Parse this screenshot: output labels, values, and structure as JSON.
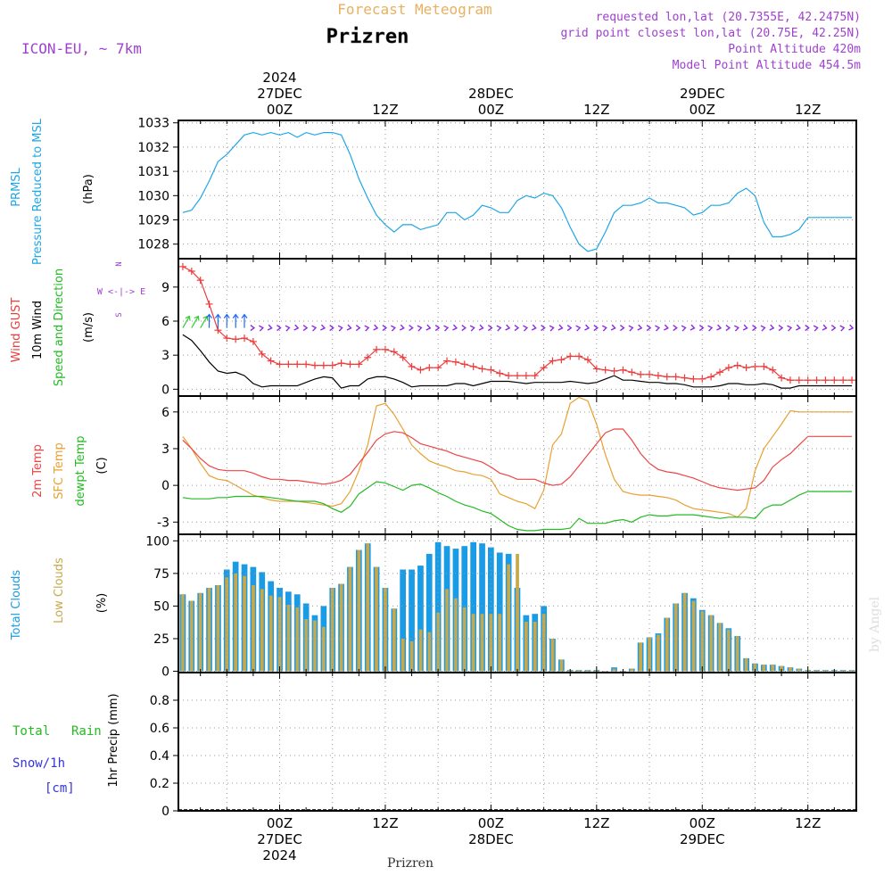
{
  "header": {
    "product_title": "Forecast Meteogram",
    "location": "Prizren",
    "model": "ICON-EU, ~ 7km",
    "requested_point": "requested lon,lat (20.7355E, 42.2475N)",
    "grid_point": "grid point closest lon,lat (20.75E, 42.25N)",
    "point_altitude": "Point Altitude 420m",
    "model_altitude": "Model Point Altitude 454.5m",
    "footer_location": "Prizren",
    "credit": "by Angel"
  },
  "time_axis": {
    "year": "2024",
    "top_labels": [
      {
        "x": 24,
        "hour": "00Z",
        "date": "27DEC",
        "year": "2024"
      },
      {
        "x": 36,
        "hour": "12Z",
        "date": "",
        "year": ""
      },
      {
        "x": 48,
        "hour": "00Z",
        "date": "28DEC",
        "year": ""
      },
      {
        "x": 60,
        "hour": "12Z",
        "date": "",
        "year": ""
      },
      {
        "x": 72,
        "hour": "00Z",
        "date": "29DEC",
        "year": ""
      },
      {
        "x": 84,
        "hour": "12Z",
        "date": "",
        "year": ""
      }
    ],
    "bottom_labels": [
      {
        "x": 24,
        "hour": "00Z",
        "date": "27DEC",
        "year": "2024"
      },
      {
        "x": 36,
        "hour": "12Z",
        "date": "",
        "year": ""
      },
      {
        "x": 48,
        "hour": "00Z",
        "date": "28DEC",
        "year": ""
      },
      {
        "x": 60,
        "hour": "12Z",
        "date": "",
        "year": ""
      },
      {
        "x": 72,
        "hour": "00Z",
        "date": "29DEC",
        "year": ""
      },
      {
        "x": 84,
        "hour": "12Z",
        "date": "",
        "year": ""
      }
    ],
    "xlim": [
      12.5,
      89.5
    ]
  },
  "colors": {
    "pressure": "#1ea6e6",
    "gust": "#ee3b3b",
    "wind": "#000000",
    "barbs_green": "#33cc33",
    "barbs_blue": "#1a66ff",
    "barbs_purple": "#8a2be2",
    "temp2m": "#ee4444",
    "sfc": "#e8a030",
    "dewpt": "#22bb22",
    "total_clouds": "#1a9be6",
    "low_clouds": "#c8a84a",
    "rain": "#22bb22",
    "snow": "#3333dd",
    "purple_text": "#a040d0",
    "orange_text": "#e8b060"
  },
  "panels": {
    "pressure": {
      "label1": "PRMSL",
      "label2": "Pressure Reduced to MSL",
      "unit": "(hPa)",
      "ticks": [
        "1028",
        "1029",
        "1030",
        "1031",
        "1032",
        "1033"
      ]
    },
    "wind": {
      "label_gust": "Wind GUST",
      "label_wind": "10m Wind",
      "label_dir": "Speed and Direction",
      "unit": "(m/s)",
      "compass_n": "N",
      "compass_s": "S",
      "compass_mid": "W <-|-> E",
      "ticks": [
        "0",
        "3",
        "6",
        "9"
      ]
    },
    "temp": {
      "label1": "2m Temp",
      "label2": "SFC Temp",
      "label3": "dewpt Temp",
      "unit": "(C)",
      "ticks": [
        "-3",
        "0",
        "3",
        "6"
      ]
    },
    "clouds": {
      "label1": "Total Clouds",
      "label2": "Low Clouds",
      "unit": "(%)",
      "ticks": [
        "0",
        "25",
        "50",
        "75",
        "100"
      ]
    },
    "precip": {
      "label_rain1": "Total",
      "label_rain2": "Rain",
      "label_snow": "Snow/1h",
      "label_snow_unit": "[cm]",
      "ylabel": "1hr Precip (mm)",
      "ticks": [
        "0",
        "0.2",
        "0.4",
        "0.6",
        "0.8"
      ]
    }
  },
  "chart_data": [
    {
      "type": "line",
      "name": "pressure",
      "ylim": [
        1027.4,
        1033.1
      ],
      "x": [
        13,
        14,
        15,
        16,
        17,
        18,
        19,
        20,
        21,
        22,
        23,
        24,
        25,
        26,
        27,
        28,
        29,
        30,
        31,
        32,
        33,
        34,
        35,
        36,
        37,
        38,
        39,
        40,
        41,
        42,
        43,
        44,
        45,
        46,
        47,
        48,
        49,
        50,
        51,
        52,
        53,
        54,
        55,
        56,
        57,
        58,
        59,
        60,
        61,
        62,
        63,
        64,
        65,
        66,
        67,
        68,
        69,
        70,
        71,
        72,
        73,
        74,
        75,
        76,
        77,
        78,
        79,
        80,
        81,
        82,
        83,
        84,
        85,
        86,
        87,
        88,
        89
      ],
      "values": [
        1029.3,
        1029.4,
        1029.9,
        1030.6,
        1031.4,
        1031.7,
        1032.1,
        1032.5,
        1032.6,
        1032.5,
        1032.6,
        1032.5,
        1032.6,
        1032.4,
        1032.6,
        1032.5,
        1032.6,
        1032.6,
        1032.5,
        1031.7,
        1030.7,
        1029.9,
        1029.2,
        1028.8,
        1028.5,
        1028.8,
        1028.8,
        1028.6,
        1028.7,
        1028.8,
        1029.3,
        1029.3,
        1029.0,
        1029.2,
        1029.6,
        1029.5,
        1029.3,
        1029.3,
        1029.8,
        1030.0,
        1029.9,
        1030.1,
        1030.0,
        1029.5,
        1028.7,
        1028.0,
        1027.7,
        1027.8,
        1028.5,
        1029.3,
        1029.6,
        1029.6,
        1029.7,
        1029.9,
        1029.7,
        1029.7,
        1029.6,
        1029.5,
        1029.2,
        1029.3,
        1029.6,
        1029.6,
        1029.7,
        1030.1,
        1030.3,
        1030.0,
        1028.9,
        1028.3,
        1028.3,
        1028.4,
        1028.6,
        1029.1,
        1029.1,
        1029.1,
        1029.1,
        1029.1,
        1029.1
      ]
    },
    {
      "type": "line",
      "name": "wind",
      "ylim": [
        -0.6,
        11.5
      ],
      "x": [
        13,
        14,
        15,
        16,
        17,
        18,
        19,
        20,
        21,
        22,
        23,
        24,
        25,
        26,
        27,
        28,
        29,
        30,
        31,
        32,
        33,
        34,
        35,
        36,
        37,
        38,
        39,
        40,
        41,
        42,
        43,
        44,
        45,
        46,
        47,
        48,
        49,
        50,
        51,
        52,
        53,
        54,
        55,
        56,
        57,
        58,
        59,
        60,
        61,
        62,
        63,
        64,
        65,
        66,
        67,
        68,
        69,
        70,
        71,
        72,
        73,
        74,
        75,
        76,
        77,
        78,
        79,
        80,
        81,
        82,
        83,
        84,
        85,
        86,
        87,
        88,
        89
      ],
      "gust": [
        10.8,
        10.4,
        9.6,
        7.5,
        5.2,
        4.5,
        4.4,
        4.5,
        4.2,
        3.1,
        2.5,
        2.2,
        2.2,
        2.2,
        2.2,
        2.1,
        2.1,
        2.1,
        2.3,
        2.2,
        2.2,
        2.8,
        3.5,
        3.5,
        3.3,
        2.8,
        2.0,
        1.7,
        1.9,
        1.9,
        2.5,
        2.4,
        2.2,
        2.0,
        1.8,
        1.7,
        1.4,
        1.2,
        1.2,
        1.2,
        1.2,
        1.9,
        2.5,
        2.6,
        2.9,
        2.9,
        2.6,
        1.8,
        1.7,
        1.6,
        1.7,
        1.5,
        1.3,
        1.3,
        1.2,
        1.1,
        1.1,
        1.0,
        0.9,
        0.9,
        1.1,
        1.5,
        1.9,
        2.1,
        1.9,
        2.0,
        2.0,
        1.7,
        1.0,
        0.8,
        0.8,
        0.8,
        0.8,
        0.8,
        0.8,
        0.8,
        0.8
      ],
      "speed": [
        4.8,
        4.3,
        3.4,
        2.4,
        1.6,
        1.4,
        1.5,
        1.2,
        0.5,
        0.2,
        0.3,
        0.3,
        0.3,
        0.3,
        0.6,
        0.9,
        1.1,
        1.0,
        0.1,
        0.3,
        0.3,
        0.9,
        1.1,
        1.1,
        0.9,
        0.6,
        0.2,
        0.3,
        0.3,
        0.3,
        0.3,
        0.5,
        0.5,
        0.3,
        0.5,
        0.7,
        0.7,
        0.7,
        0.6,
        0.5,
        0.6,
        0.6,
        0.6,
        0.6,
        0.7,
        0.6,
        0.5,
        0.6,
        0.9,
        1.2,
        0.8,
        0.8,
        0.7,
        0.6,
        0.6,
        0.5,
        0.5,
        0.4,
        0.2,
        0.2,
        0.2,
        0.3,
        0.5,
        0.5,
        0.4,
        0.4,
        0.5,
        0.4,
        0.1,
        0.1,
        0.3,
        0.3,
        0.3,
        0.3,
        0.3,
        0.3,
        0.3
      ],
      "barb_y": 5.4
    },
    {
      "type": "line",
      "name": "temperature",
      "ylim": [
        -4.0,
        7.3
      ],
      "x": [
        13,
        14,
        15,
        16,
        17,
        18,
        19,
        20,
        21,
        22,
        23,
        24,
        25,
        26,
        27,
        28,
        29,
        30,
        31,
        32,
        33,
        34,
        35,
        36,
        37,
        38,
        39,
        40,
        41,
        42,
        43,
        44,
        45,
        46,
        47,
        48,
        49,
        50,
        51,
        52,
        53,
        54,
        55,
        56,
        57,
        58,
        59,
        60,
        61,
        62,
        63,
        64,
        65,
        66,
        67,
        68,
        69,
        70,
        71,
        72,
        73,
        74,
        75,
        76,
        77,
        78,
        79,
        80,
        81,
        82,
        83,
        84,
        85,
        86,
        87,
        88,
        89
      ],
      "t2m": [
        3.7,
        3.0,
        2.2,
        1.6,
        1.3,
        1.2,
        1.2,
        1.2,
        1.0,
        0.7,
        0.5,
        0.5,
        0.4,
        0.4,
        0.3,
        0.2,
        0.1,
        0.2,
        0.4,
        0.9,
        1.8,
        2.7,
        3.7,
        4.2,
        4.4,
        4.3,
        3.9,
        3.4,
        3.2,
        3.0,
        2.8,
        2.5,
        2.3,
        2.1,
        1.9,
        1.5,
        1.0,
        0.8,
        0.5,
        0.5,
        0.5,
        0.2,
        0.0,
        0.1,
        0.7,
        1.6,
        2.5,
        3.4,
        4.3,
        4.6,
        4.6,
        3.7,
        2.6,
        1.8,
        1.3,
        1.1,
        1.0,
        0.8,
        0.6,
        0.3,
        0.0,
        -0.2,
        -0.3,
        -0.4,
        -0.3,
        -0.2,
        0.4,
        1.5,
        2.1,
        2.6,
        3.3,
        4.0,
        4.0,
        4.0,
        4.0,
        4.0,
        4.0
      ],
      "sfc": [
        4.0,
        3.0,
        1.8,
        0.8,
        0.5,
        0.4,
        0.0,
        -0.4,
        -0.8,
        -1.0,
        -1.2,
        -1.3,
        -1.3,
        -1.3,
        -1.4,
        -1.5,
        -1.6,
        -1.7,
        -1.5,
        -0.5,
        1.2,
        3.3,
        6.5,
        6.7,
        5.8,
        4.6,
        3.3,
        2.6,
        2.0,
        1.7,
        1.5,
        1.2,
        1.1,
        0.9,
        0.8,
        0.5,
        -0.7,
        -1.0,
        -1.3,
        -1.5,
        -1.9,
        -0.4,
        3.3,
        4.2,
        6.7,
        7.2,
        6.9,
        5.0,
        2.5,
        0.5,
        -0.5,
        -0.7,
        -0.8,
        -0.8,
        -0.9,
        -1.0,
        -1.2,
        -1.6,
        -1.9,
        -2.0,
        -2.1,
        -2.2,
        -2.3,
        -2.6,
        -1.9,
        1.2,
        3.0,
        4.0,
        5.0,
        6.1,
        6.0,
        6.0,
        6.0,
        6.0,
        6.0,
        6.0,
        6.0
      ],
      "dewpt": [
        -1.0,
        -1.1,
        -1.1,
        -1.1,
        -1.0,
        -1.0,
        -0.9,
        -0.9,
        -0.9,
        -0.9,
        -1.0,
        -1.1,
        -1.2,
        -1.3,
        -1.3,
        -1.3,
        -1.5,
        -1.9,
        -2.2,
        -1.7,
        -0.7,
        -0.2,
        0.3,
        0.2,
        -0.1,
        -0.4,
        0.0,
        0.1,
        -0.2,
        -0.6,
        -0.9,
        -1.3,
        -1.6,
        -1.8,
        -2.1,
        -2.3,
        -2.8,
        -3.3,
        -3.6,
        -3.7,
        -3.7,
        -3.6,
        -3.6,
        -3.6,
        -3.5,
        -2.7,
        -3.1,
        -3.1,
        -3.1,
        -2.9,
        -2.8,
        -3.0,
        -2.6,
        -2.4,
        -2.5,
        -2.5,
        -2.4,
        -2.4,
        -2.4,
        -2.5,
        -2.6,
        -2.7,
        -2.6,
        -2.6,
        -2.6,
        -2.7,
        -1.9,
        -1.6,
        -1.6,
        -1.2,
        -0.8,
        -0.5,
        -0.5,
        -0.5,
        -0.5,
        -0.5,
        -0.5
      ]
    },
    {
      "type": "bar",
      "name": "clouds",
      "ylim": [
        -1,
        105
      ],
      "x": [
        13,
        14,
        15,
        16,
        17,
        18,
        19,
        20,
        21,
        22,
        23,
        24,
        25,
        26,
        27,
        28,
        29,
        30,
        31,
        32,
        33,
        34,
        35,
        36,
        37,
        38,
        39,
        40,
        41,
        42,
        43,
        44,
        45,
        46,
        47,
        48,
        49,
        50,
        51,
        52,
        53,
        54,
        55,
        56,
        57,
        58,
        59,
        60,
        61,
        62,
        63,
        64,
        65,
        66,
        67,
        68,
        69,
        70,
        71,
        72,
        73,
        74,
        75,
        76,
        77,
        78,
        79,
        80,
        81,
        82,
        83,
        84,
        85,
        86,
        87,
        88,
        89
      ],
      "total": [
        59,
        54,
        60,
        64,
        66,
        78,
        84,
        82,
        80,
        76,
        69,
        64,
        61,
        59,
        52,
        43,
        50,
        64,
        67,
        80,
        93,
        98,
        80,
        64,
        48,
        78,
        78,
        81,
        90,
        99,
        96,
        94,
        96,
        99,
        98,
        95,
        91,
        90,
        64,
        43,
        44,
        50,
        25,
        9,
        1,
        1,
        1,
        1,
        0,
        3,
        0,
        2,
        22,
        26,
        29,
        41,
        52,
        60,
        56,
        47,
        43,
        37,
        33,
        27,
        10,
        6,
        5,
        5,
        4,
        3,
        2,
        1,
        1,
        1,
        1,
        1,
        1
      ],
      "low": [
        59,
        54,
        60,
        64,
        66,
        72,
        75,
        73,
        66,
        63,
        58,
        57,
        51,
        49,
        40,
        39,
        34,
        64,
        67,
        80,
        93,
        98,
        80,
        64,
        48,
        25,
        23,
        32,
        30,
        45,
        63,
        56,
        49,
        44,
        44,
        44,
        44,
        82,
        90,
        38,
        38,
        44,
        25,
        9,
        1,
        1,
        1,
        1,
        0,
        2,
        0,
        2,
        22,
        26,
        28,
        41,
        52,
        60,
        54,
        46,
        43,
        37,
        32,
        27,
        10,
        6,
        5,
        5,
        4,
        3,
        2,
        1,
        1,
        1,
        1,
        1,
        1
      ]
    },
    {
      "type": "bar",
      "name": "precipitation",
      "ylim": [
        0,
        1.0
      ],
      "x": [
        13,
        14,
        15,
        16,
        17,
        18,
        19,
        20,
        21,
        22,
        23,
        24,
        25,
        26,
        27,
        28,
        29,
        30,
        31,
        32,
        33,
        34,
        35,
        36,
        37,
        38,
        39,
        40,
        41,
        42,
        43,
        44,
        45,
        46,
        47,
        48,
        49,
        50,
        51,
        52,
        53,
        54,
        55,
        56,
        57,
        58,
        59,
        60,
        61,
        62,
        63,
        64,
        65,
        66,
        67,
        68,
        69,
        70,
        71,
        72,
        73,
        74,
        75,
        76,
        77,
        78,
        79,
        80,
        81,
        82,
        83,
        84,
        85,
        86,
        87,
        88,
        89
      ],
      "rain": [
        0,
        0,
        0,
        0,
        0,
        0,
        0,
        0,
        0,
        0,
        0,
        0,
        0,
        0,
        0,
        0,
        0,
        0,
        0,
        0,
        0,
        0,
        0,
        0,
        0,
        0,
        0,
        0,
        0,
        0,
        0,
        0,
        0,
        0,
        0,
        0,
        0,
        0,
        0,
        0,
        0,
        0,
        0,
        0,
        0,
        0,
        0,
        0,
        0,
        0,
        0,
        0,
        0,
        0,
        0,
        0,
        0,
        0,
        0,
        0,
        0,
        0,
        0,
        0,
        0,
        0,
        0,
        0,
        0,
        0,
        0,
        0,
        0,
        0,
        0,
        0,
        0
      ],
      "snow": [
        0,
        0,
        0,
        0,
        0,
        0,
        0,
        0,
        0,
        0,
        0,
        0,
        0,
        0,
        0,
        0,
        0,
        0,
        0,
        0,
        0,
        0,
        0,
        0,
        0,
        0,
        0,
        0,
        0,
        0,
        0,
        0,
        0,
        0,
        0,
        0,
        0,
        0,
        0,
        0,
        0,
        0,
        0,
        0,
        0,
        0,
        0,
        0,
        0,
        0,
        0,
        0,
        0,
        0,
        0,
        0,
        0,
        0,
        0,
        0,
        0,
        0,
        0,
        0,
        0,
        0,
        0,
        0,
        0,
        0,
        0,
        0,
        0,
        0,
        0,
        0,
        0
      ]
    }
  ]
}
